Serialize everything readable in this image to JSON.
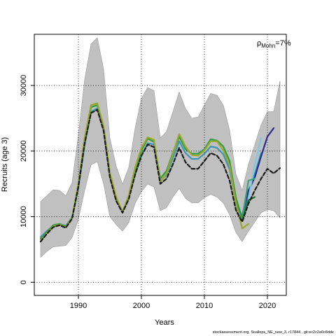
{
  "chart_data": {
    "type": "line",
    "xlabel": "Years",
    "ylabel": "Recruits (age 3)",
    "xlim": [
      1983,
      2023
    ],
    "ylim": [
      -2000,
      37800
    ],
    "x_ticks": [
      1990,
      2000,
      2010,
      2020
    ],
    "y_ticks": [
      0,
      10000,
      20000,
      30000
    ],
    "x_tick_labels": [
      "1990",
      "2000",
      "2010",
      "2020"
    ],
    "y_tick_labels": [
      "0",
      "10000",
      "20000",
      "30000"
    ],
    "grid": true,
    "annotation": {
      "symbol": "ρ",
      "subscript": "Mohn",
      "text": "=7%"
    },
    "footer": "stockassessment.org, Scallops_NE_new_3, r17844 , git:ec2c2a0c6dde",
    "ci_band": {
      "x": [
        1984,
        1985,
        1986,
        1987,
        1988,
        1989,
        1990,
        1991,
        1992,
        1993,
        1994,
        1995,
        1996,
        1997,
        1998,
        1999,
        2000,
        2001,
        2002,
        2003,
        2004,
        2005,
        2006,
        2007,
        2008,
        2009,
        2010,
        2011,
        2012,
        2013,
        2014,
        2015,
        2016,
        2017,
        2018,
        2019,
        2020,
        2021,
        2022
      ],
      "upper": [
        12300,
        13200,
        14100,
        14000,
        13200,
        15200,
        22500,
        31000,
        36300,
        37300,
        32500,
        22000,
        17700,
        15000,
        17500,
        23500,
        28000,
        29700,
        29200,
        22000,
        23000,
        26000,
        29000,
        26500,
        25000,
        25200,
        27000,
        28800,
        28500,
        27000,
        23200,
        16500,
        14000,
        18000,
        21000,
        24000,
        26000,
        26000,
        30700
      ],
      "lower": [
        3800,
        4700,
        5400,
        5500,
        5600,
        6800,
        9600,
        14000,
        17900,
        18400,
        15000,
        10000,
        8800,
        7800,
        9100,
        12000,
        13800,
        15000,
        14500,
        10900,
        11400,
        13000,
        14300,
        12800,
        12100,
        12100,
        12900,
        13400,
        13000,
        12100,
        10300,
        7600,
        6200,
        7800,
        9200,
        10600,
        11100,
        10900,
        9800
      ]
    },
    "series": [
      {
        "color": "#3a96b4",
        "x": [
          1984,
          1985,
          1986,
          1987,
          1988,
          1989,
          1990,
          1991,
          1992,
          1993,
          1994,
          1995,
          1996,
          1997,
          1998,
          1999,
          2000,
          2001,
          2002,
          2003,
          2004,
          2005,
          2006,
          2007,
          2008,
          2009,
          2010,
          2011,
          2012,
          2013,
          2014,
          2015,
          2016,
          2017,
          2018,
          2019
        ],
        "values": [
          6900,
          7800,
          8600,
          8900,
          8600,
          9900,
          14400,
          21000,
          26000,
          26500,
          23400,
          16200,
          12600,
          10800,
          13000,
          16500,
          19300,
          21200,
          21000,
          15400,
          16400,
          19000,
          21500,
          19700,
          18800,
          18800,
          19600,
          20700,
          20500,
          19500,
          17200,
          12200,
          9700,
          13500,
          16500,
          19700
        ]
      },
      {
        "color": "#2b2b8e",
        "x": [
          2016,
          2017,
          2018,
          2019,
          2020,
          2021
        ],
        "values": [
          10200,
          14000,
          16000,
          19200,
          22200,
          23500
        ]
      },
      {
        "color": "#7ec8e3",
        "x": [
          2017,
          2018,
          2019
        ],
        "values": [
          12800,
          18000,
          22000
        ]
      },
      {
        "color": "#3aa37a",
        "x": [
          2016,
          2017,
          2018
        ],
        "values": [
          9800,
          15500,
          15800
        ]
      },
      {
        "color": "#1d6b2e",
        "x": [
          2016,
          2017,
          2018
        ],
        "values": [
          9500,
          12500,
          13000
        ]
      },
      {
        "color": "#2f9a46",
        "x": [
          1984,
          1985,
          1986,
          1987,
          1988,
          1989,
          1990,
          1991,
          1992,
          1993,
          1994,
          1995,
          1996,
          1997,
          1998,
          1999,
          2000,
          2001,
          2002,
          2003,
          2004,
          2005,
          2006,
          2007,
          2008,
          2009,
          2010,
          2011,
          2012,
          2013,
          2014,
          2015,
          2016
        ],
        "values": [
          6600,
          7700,
          8700,
          8900,
          8500,
          9800,
          14800,
          21500,
          26700,
          27000,
          23600,
          16500,
          12700,
          10700,
          13200,
          17000,
          20100,
          21900,
          21400,
          15800,
          17000,
          19800,
          22200,
          20300,
          19600,
          19600,
          20300,
          21800,
          21600,
          20700,
          18500,
          12900,
          9700
        ]
      },
      {
        "color": "#9ca828",
        "x": [
          1984,
          1985,
          1986,
          1987,
          1988,
          1989,
          1990,
          1991,
          1992,
          1993,
          1994,
          1995,
          1996,
          1997,
          1998,
          1999,
          2000,
          2001,
          2002,
          2003,
          2004,
          2005,
          2006,
          2007,
          2008,
          2009,
          2010,
          2011,
          2012,
          2013,
          2014,
          2015,
          2016,
          2017
        ],
        "values": [
          6300,
          7500,
          8500,
          8800,
          8400,
          9800,
          15100,
          22100,
          27000,
          27300,
          23800,
          16700,
          13000,
          10700,
          13300,
          17500,
          20500,
          22100,
          21700,
          15300,
          16600,
          19700,
          22600,
          20700,
          19400,
          19300,
          20100,
          21500,
          21500,
          20100,
          17800,
          12000,
          8200,
          8900
        ]
      },
      {
        "color": "#1a1a1a",
        "x": [
          1984,
          1985,
          1986,
          1987,
          1988,
          1989,
          1990,
          1991,
          1992,
          1993,
          1994,
          1995,
          1996,
          1997,
          1998,
          1999,
          2000,
          2001,
          2002,
          2003,
          2004,
          2005,
          2006,
          2007,
          2008,
          2009,
          2010,
          2011,
          2012,
          2013,
          2014,
          2015,
          2016,
          2017,
          2018,
          2019,
          2020,
          2021,
          2022
        ],
        "dashed": true,
        "values": [
          6200,
          7400,
          8400,
          8700,
          8300,
          9700,
          14600,
          21200,
          25800,
          26300,
          23100,
          16000,
          12400,
          10600,
          12700,
          16400,
          19300,
          21000,
          20600,
          15000,
          15800,
          18000,
          20500,
          18300,
          17300,
          17300,
          18500,
          19700,
          19300,
          18000,
          15500,
          11000,
          9200,
          12000,
          14000,
          15800,
          17300,
          16600,
          17400
        ]
      }
    ]
  }
}
